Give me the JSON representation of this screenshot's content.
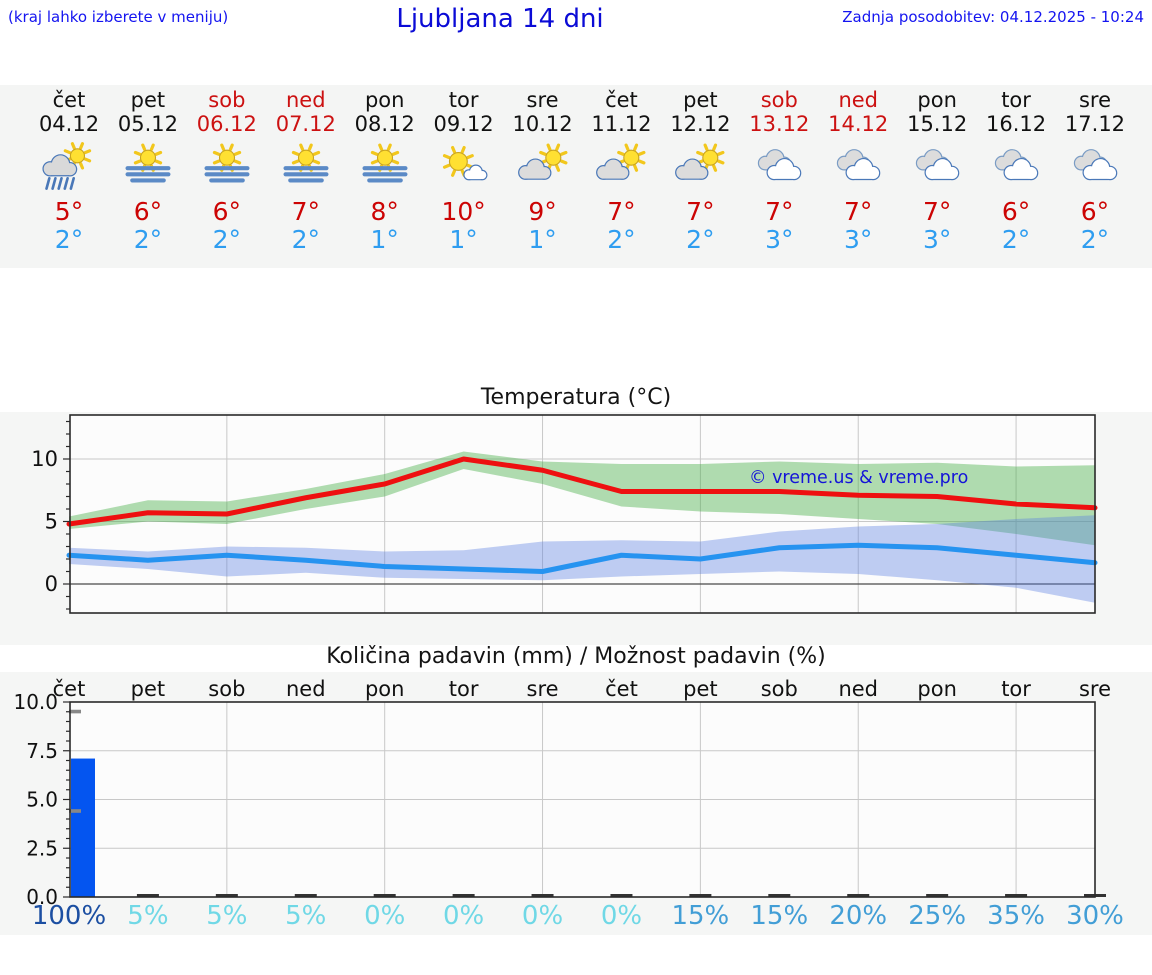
{
  "header": {
    "menu_hint": "(kraj lahko izberete v meniju)",
    "title": "Ljubljana 14 dni",
    "last_update": "Zadnja posodobitev: 04.12.2025 - 10:24"
  },
  "days": [
    {
      "name": "čet",
      "date": "04.12",
      "weekend": false,
      "icon": "rain-sun",
      "high": "5°",
      "low": "2°",
      "precip_prob": "100%"
    },
    {
      "name": "pet",
      "date": "05.12",
      "weekend": false,
      "icon": "fog-sun",
      "high": "6°",
      "low": "2°",
      "precip_prob": "5%"
    },
    {
      "name": "sob",
      "date": "06.12",
      "weekend": true,
      "icon": "fog-sun",
      "high": "6°",
      "low": "2°",
      "precip_prob": "5%"
    },
    {
      "name": "ned",
      "date": "07.12",
      "weekend": true,
      "icon": "fog-sun",
      "high": "7°",
      "low": "2°",
      "precip_prob": "5%"
    },
    {
      "name": "pon",
      "date": "08.12",
      "weekend": false,
      "icon": "fog-sun",
      "high": "8°",
      "low": "1°",
      "precip_prob": "0%"
    },
    {
      "name": "tor",
      "date": "09.12",
      "weekend": false,
      "icon": "sun-cloud",
      "high": "10°",
      "low": "1°",
      "precip_prob": "0%"
    },
    {
      "name": "sre",
      "date": "10.12",
      "weekend": false,
      "icon": "cloud-sun",
      "high": "9°",
      "low": "1°",
      "precip_prob": "0%"
    },
    {
      "name": "čet",
      "date": "11.12",
      "weekend": false,
      "icon": "cloud-sun",
      "high": "7°",
      "low": "2°",
      "precip_prob": "0%"
    },
    {
      "name": "pet",
      "date": "12.12",
      "weekend": false,
      "icon": "cloud-sun",
      "high": "7°",
      "low": "2°",
      "precip_prob": "15%"
    },
    {
      "name": "sob",
      "date": "13.12",
      "weekend": true,
      "icon": "cloudy",
      "high": "7°",
      "low": "3°",
      "precip_prob": "15%"
    },
    {
      "name": "ned",
      "date": "14.12",
      "weekend": true,
      "icon": "cloudy",
      "high": "7°",
      "low": "3°",
      "precip_prob": "20%"
    },
    {
      "name": "pon",
      "date": "15.12",
      "weekend": false,
      "icon": "cloudy",
      "high": "7°",
      "low": "3°",
      "precip_prob": "25%"
    },
    {
      "name": "tor",
      "date": "16.12",
      "weekend": false,
      "icon": "cloudy",
      "high": "6°",
      "low": "2°",
      "precip_prob": "35%"
    },
    {
      "name": "sre",
      "date": "17.12",
      "weekend": false,
      "icon": "cloudy",
      "high": "6°",
      "low": "2°",
      "precip_prob": "30%"
    }
  ],
  "chart_data": [
    {
      "type": "line",
      "title": "Temperatura (°C)",
      "x_labels": [
        "čet",
        "pet",
        "sob",
        "ned",
        "pon",
        "tor",
        "sre",
        "čet",
        "pet",
        "sob",
        "ned",
        "pon",
        "tor",
        "sre"
      ],
      "yticks": [
        0,
        5,
        10
      ],
      "ylim": [
        -2.3,
        13.5
      ],
      "grid": true,
      "legend_position": "none",
      "watermark": "© vreme.us & vreme.pro",
      "series": [
        {
          "name": "max-temperature",
          "color": "#ee1010",
          "values": [
            4.8,
            5.7,
            5.6,
            6.9,
            8.0,
            10.0,
            9.1,
            7.4,
            7.4,
            7.4,
            7.1,
            7.0,
            6.4,
            6.1
          ]
        },
        {
          "name": "min-temperature",
          "color": "#2693f0",
          "values": [
            2.3,
            1.9,
            2.3,
            1.9,
            1.4,
            1.2,
            1.0,
            2.3,
            2.0,
            2.9,
            3.1,
            2.9,
            2.3,
            1.7
          ]
        }
      ],
      "bands": [
        {
          "name": "max-temperature-range",
          "color": "rgba(70,175,70,0.42)",
          "upper": [
            5.4,
            6.7,
            6.6,
            7.6,
            8.8,
            10.6,
            9.8,
            9.6,
            9.6,
            9.8,
            9.6,
            9.7,
            9.4,
            9.5
          ],
          "lower": [
            4.4,
            5.0,
            4.8,
            6.0,
            7.0,
            9.2,
            8.0,
            6.2,
            5.8,
            5.6,
            5.2,
            4.8,
            4.0,
            3.1
          ]
        },
        {
          "name": "min-temperature-range",
          "color": "rgba(90,125,225,0.38)",
          "upper": [
            2.9,
            2.6,
            3.0,
            2.9,
            2.6,
            2.7,
            3.4,
            3.5,
            3.4,
            4.2,
            4.6,
            4.8,
            5.2,
            5.5
          ],
          "lower": [
            1.6,
            1.2,
            0.6,
            0.9,
            0.5,
            0.4,
            0.3,
            0.6,
            0.8,
            1.0,
            0.8,
            0.3,
            -0.3,
            -1.5
          ]
        }
      ]
    },
    {
      "type": "bar",
      "title": "Količina padavin (mm) / Možnost padavin (%)",
      "categories": [
        "čet",
        "pet",
        "sob",
        "ned",
        "pon",
        "tor",
        "sre",
        "čet",
        "pet",
        "sob",
        "ned",
        "pon",
        "tor",
        "sre"
      ],
      "values": [
        7.1,
        0,
        0,
        0,
        0,
        0,
        0,
        0,
        0,
        0,
        0,
        0,
        0,
        0
      ],
      "bar_color": "#0455f0",
      "error_bars": [
        {
          "index": 0,
          "low": 4.4,
          "high": 9.5
        }
      ],
      "yticks": [
        "0.0",
        "2.5",
        "5.0",
        "7.5",
        "10.0"
      ],
      "ylim": [
        0,
        10
      ],
      "grid": true,
      "probabilities": [
        "100%",
        "5%",
        "5%",
        "5%",
        "0%",
        "0%",
        "0%",
        "0%",
        "15%",
        "15%",
        "20%",
        "25%",
        "35%",
        "30%"
      ]
    }
  ],
  "colors": {
    "link_blue": "#1414f0",
    "title_blue": "#0b0bd6",
    "weekend_red": "#cc1111",
    "high_temp_red": "#cc0404",
    "low_temp_blue": "#2e9df0",
    "watermark_blue": "#1414d8",
    "prob_high": "#1c4fa2",
    "prob_mid": "#429ed6",
    "prob_low": "#70d8e6",
    "strip_bg": "#f4f5f4",
    "band_bg": "#f5f6f5"
  }
}
